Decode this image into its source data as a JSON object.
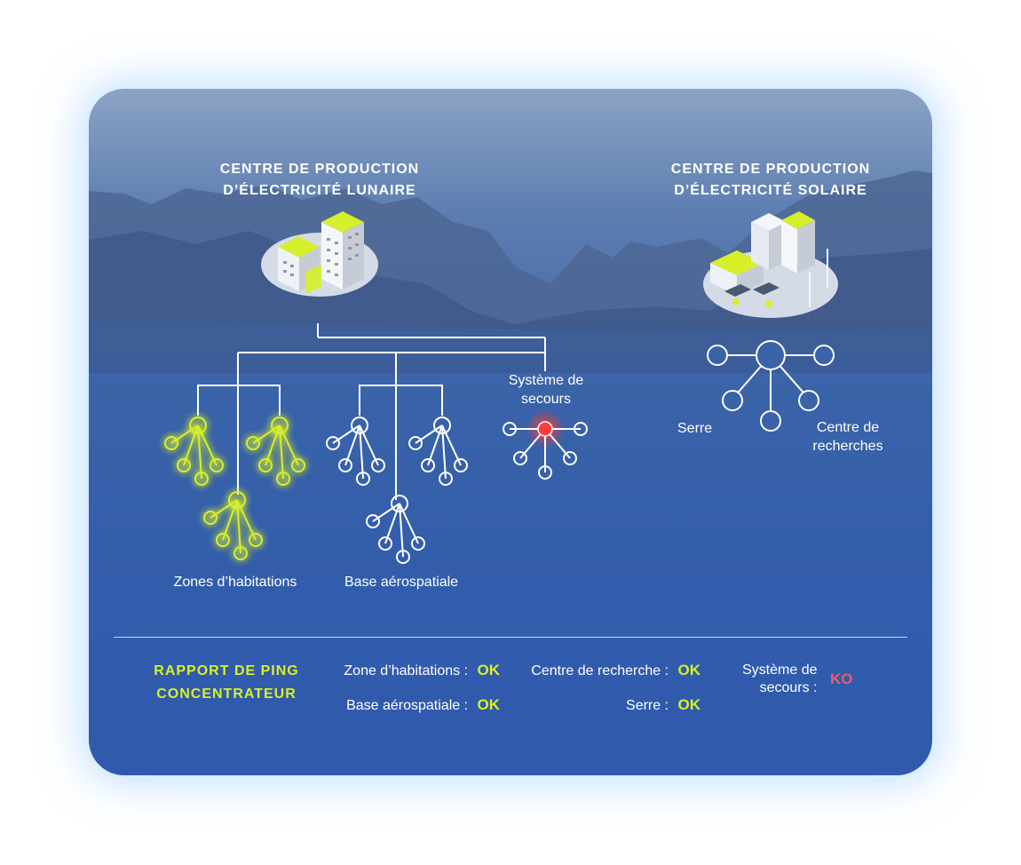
{
  "colors": {
    "accent_ok": "#d7ef2a",
    "status_ko": "#f25a6a",
    "node_default": "#ffffff",
    "node_ok_glow": "#d7ef2a",
    "node_alert": "#ff3b3b"
  },
  "titles": {
    "lunar_line1": "CENTRE DE PRODUCTION",
    "lunar_line2": "D’ÉLECTRICITÉ LUNAIRE",
    "solar_line1": "CENTRE DE PRODUCTION",
    "solar_line2": "D’ÉLECTRICITÉ SOLAIRE"
  },
  "icons": {
    "lunar_plant": "building-cluster-icon",
    "solar_plant": "solar-plant-icon"
  },
  "labels": {
    "zones": "Zones d’habitations",
    "base": "Base aérospatiale",
    "secours_line1": "Système de",
    "secours_line2": "secours",
    "serre": "Serre",
    "centre_line1": "Centre de",
    "centre_line2": "recherches"
  },
  "report": {
    "title_line1": "RAPPORT DE PING",
    "title_line2": "CONCENTRATEUR",
    "items": [
      {
        "label": "Zone d’habitations :",
        "status": "OK"
      },
      {
        "label": "Base aérospatiale :",
        "status": "OK"
      },
      {
        "label": "Centre de recherche :",
        "status": "OK"
      },
      {
        "label": "Serre :",
        "status": "OK"
      },
      {
        "label_line1": "Système de",
        "label_line2": "secours :",
        "status": "KO"
      }
    ]
  }
}
